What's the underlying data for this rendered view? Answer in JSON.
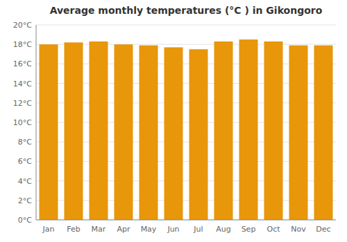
{
  "chart_data": {
    "type": "bar",
    "title": "Average monthly temperatures (°C ) in Gikongoro",
    "categories": [
      "Jan",
      "Feb",
      "Mar",
      "Apr",
      "May",
      "Jun",
      "Jul",
      "Aug",
      "Sep",
      "Oct",
      "Nov",
      "Dec"
    ],
    "values": [
      18.0,
      18.2,
      18.3,
      18.0,
      17.9,
      17.7,
      17.5,
      18.3,
      18.5,
      18.3,
      17.9,
      17.9
    ],
    "color": "#E8960A",
    "ylim": [
      0,
      20
    ],
    "yticks": [
      {
        "value": 0,
        "label": "0°C"
      },
      {
        "value": 2,
        "label": "2°C"
      },
      {
        "value": 4,
        "label": "4°C"
      },
      {
        "value": 6,
        "label": "6°C"
      },
      {
        "value": 8,
        "label": "8°C"
      },
      {
        "value": 10,
        "label": "10°C"
      },
      {
        "value": 12,
        "label": "12°C"
      },
      {
        "value": 14,
        "label": "14°C"
      },
      {
        "value": 16,
        "label": "16°C"
      },
      {
        "value": 18,
        "label": "18°C"
      },
      {
        "value": 20,
        "label": "20°C"
      }
    ],
    "grid": true
  }
}
